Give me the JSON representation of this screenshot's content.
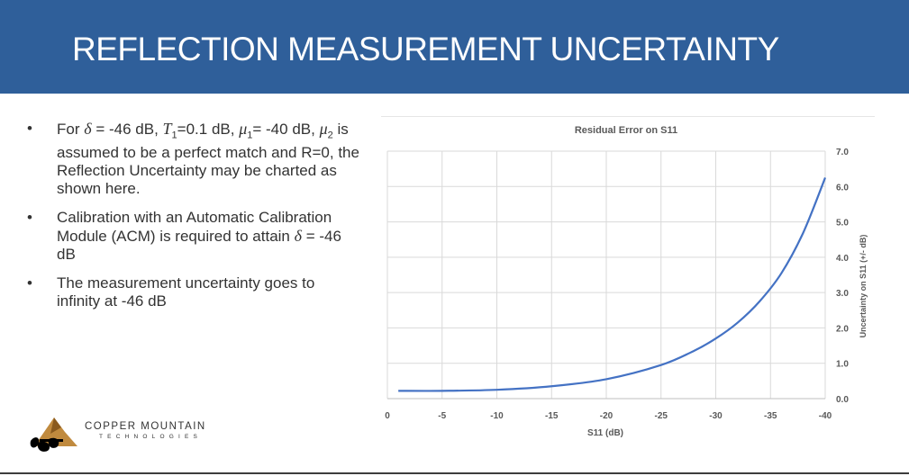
{
  "slide": {
    "title": "REFLECTION MEASUREMENT UNCERTAINTY",
    "title_bar_color": "#2f5f9a"
  },
  "bullets": {
    "b1": {
      "p1": "For ",
      "delta": "δ",
      "p2": " = -46 dB, ",
      "T": "T",
      "T_sub": "1",
      "p3": "=0.1 dB, ",
      "mu1": "μ",
      "mu1_sub": "1",
      "p4": "= -40 dB, ",
      "mu2": "μ",
      "mu2_sub": "2",
      "p5": " is assumed to be a perfect match and R=0, the Reflection Uncertainty may be charted as shown here."
    },
    "b2": {
      "p1": "Calibration with an Automatic Calibration Module (ACM) is required to attain ",
      "delta": "δ",
      "p2": " = -46 dB"
    },
    "b3": {
      "text": "The measurement uncertainty goes to infinity at -46 dB"
    }
  },
  "logo": {
    "name": "COPPER MOUNTAIN",
    "sub": "TECHNOLOGIES"
  },
  "chart_data": {
    "type": "line",
    "title": "Residual Error on S11",
    "xlabel": "S11 (dB)",
    "ylabel": "Uncertainty on S11 (+/- dB)",
    "xlim": [
      0,
      -40
    ],
    "ylim": [
      0,
      7
    ],
    "x_ticks": [
      0,
      -5,
      -10,
      -15,
      -20,
      -25,
      -30,
      -35,
      -40
    ],
    "y_ticks": [
      0.0,
      1.0,
      2.0,
      3.0,
      4.0,
      5.0,
      6.0,
      7.0
    ],
    "y_axis_side": "right",
    "grid": true,
    "line_color": "#4472c4",
    "series": [
      {
        "x": [
          -1,
          -5,
          -10,
          -15,
          -20,
          -25,
          -28,
          -30,
          -32,
          -34,
          -36,
          -38,
          -40
        ],
        "y": [
          0.22,
          0.22,
          0.25,
          0.35,
          0.55,
          0.95,
          1.35,
          1.7,
          2.15,
          2.75,
          3.55,
          4.7,
          6.25
        ]
      }
    ]
  }
}
